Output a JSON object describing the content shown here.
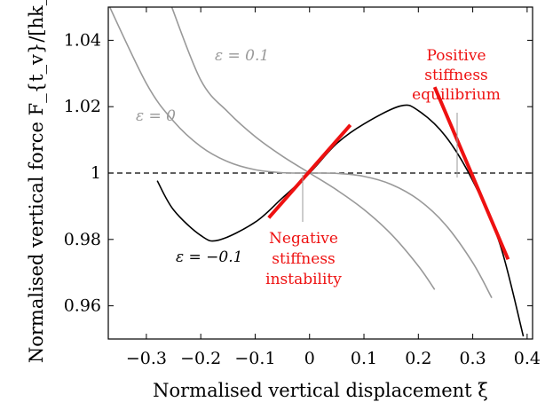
{
  "chart_data": {
    "type": "line",
    "title": "",
    "xlabel": "Normalised vertical displacement ξ",
    "ylabel": "Normalised vertical force F_{t_v}/[hk_i]",
    "xlim": [
      -0.37,
      0.41
    ],
    "ylim": [
      0.95,
      1.05
    ],
    "grid": false,
    "x_ticks": [
      -0.3,
      -0.2,
      -0.1,
      0,
      0.1,
      0.2,
      0.3,
      0.4
    ],
    "x_tick_labels": [
      "−0.3",
      "−0.2",
      "−0.1",
      "0",
      "0.1",
      "0.2",
      "0.3",
      "0.4"
    ],
    "y_ticks": [
      0.96,
      0.98,
      1.0,
      1.02,
      1.04
    ],
    "y_tick_labels": [
      "0.96",
      "0.98",
      "1",
      "1.02",
      "1.04"
    ],
    "reference_line": {
      "y": 1.0,
      "style": "dashed",
      "color": "#000000"
    },
    "series": [
      {
        "label": "ε = −0.1",
        "epsilon": -0.1,
        "color": "#000000",
        "x": [
          -0.28,
          -0.25,
          -0.2,
          -0.167,
          -0.1,
          -0.05,
          0,
          0.05,
          0.1,
          0.167,
          0.2,
          0.25,
          0.3,
          0.35,
          0.393
        ],
        "y": [
          0.9977,
          0.9889,
          0.9812,
          0.9798,
          0.9852,
          0.9925,
          1.0,
          1.0089,
          1.0148,
          1.0202,
          1.0188,
          1.0111,
          0.9977,
          0.9786,
          0.9508
        ]
      },
      {
        "label": "ε = 0",
        "epsilon": 0,
        "color": "#999999",
        "x": [
          -0.373,
          -0.3,
          -0.25,
          -0.2,
          -0.15,
          -0.1,
          -0.05,
          0,
          0.05,
          0.1,
          0.15,
          0.2,
          0.25,
          0.3,
          0.335
        ],
        "y": [
          1.052,
          1.027,
          1.0156,
          1.008,
          1.0034,
          1.001,
          1.0001,
          1.0,
          0.9999,
          0.999,
          0.9966,
          0.992,
          0.9844,
          0.973,
          0.9624
        ]
      },
      {
        "label": "ε = 0.1",
        "epsilon": 0.1,
        "color": "#999999",
        "x": [
          -0.256,
          -0.2,
          -0.15,
          -0.1,
          -0.05,
          0,
          0.05,
          0.1,
          0.15,
          0.2,
          0.23
        ],
        "y": [
          1.0512,
          1.028,
          1.0184,
          1.011,
          1.0051,
          1.0,
          0.9949,
          0.989,
          0.9816,
          0.972,
          0.9649
        ]
      }
    ],
    "tangent_lines": [
      {
        "name": "negative-stiffness",
        "color": "#ee1111",
        "x": [
          -0.075,
          0.075
        ],
        "y": [
          0.9865,
          1.0145
        ]
      },
      {
        "name": "positive-stiffness",
        "color": "#ee1111",
        "x": [
          0.23,
          0.365
        ],
        "y": [
          1.0259,
          0.974
        ]
      }
    ],
    "annotations": {
      "eps_neg": "ε = −0.1",
      "eps_zero": "ε = 0",
      "eps_pos": "ε = 0.1",
      "negative": [
        "Negative",
        "stiffness",
        "instability"
      ],
      "positive": [
        "Positive",
        "stiffness",
        "equilibrium"
      ]
    },
    "colors": {
      "accent_red": "#ee1111",
      "gray_curve": "#999999",
      "frame": "#000000"
    }
  }
}
